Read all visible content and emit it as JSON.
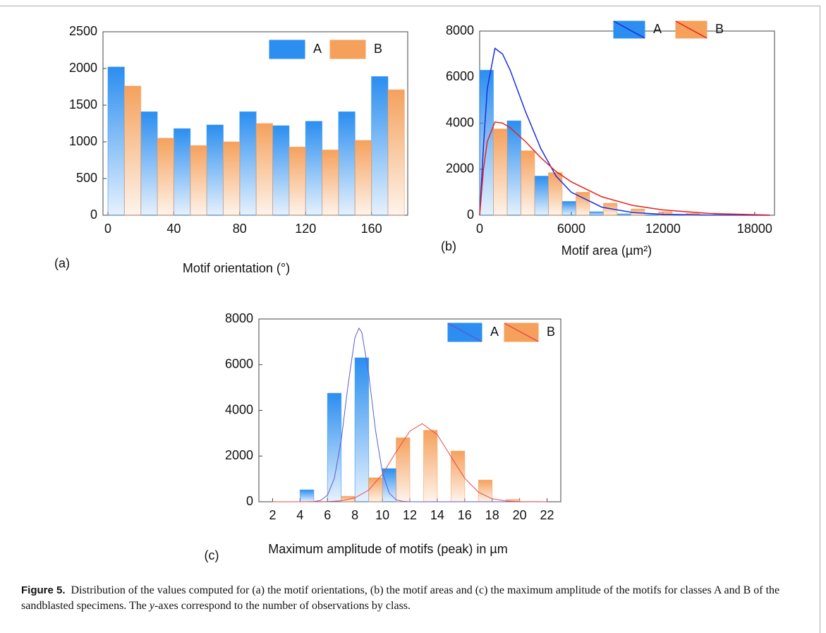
{
  "chart_data": [
    {
      "type": "histogram",
      "panel_label": "(a)",
      "x_label": "Motif orientation (°)",
      "bins": [
        0,
        20,
        40,
        60,
        80,
        100,
        120,
        140,
        160,
        180
      ],
      "series": [
        {
          "name": "A",
          "color": "#2b8ef0",
          "values": [
            2020,
            1410,
            1180,
            1230,
            1410,
            1220,
            1280,
            1410,
            1890
          ]
        },
        {
          "name": "B",
          "color": "#f5a15c",
          "values": [
            1760,
            1050,
            950,
            1000,
            1250,
            930,
            890,
            1020,
            1710
          ]
        }
      ],
      "xlim": [
        -3,
        182
      ],
      "xticks": [
        0,
        40,
        80,
        120,
        160
      ],
      "ylim": [
        0,
        2500
      ],
      "yticks": [
        0,
        500,
        1000,
        1500,
        2000,
        2500
      ],
      "legend": "upper right"
    },
    {
      "type": "histogram",
      "panel_label": "(b)",
      "x_label": "Motif area (µm²)",
      "bins": [
        0,
        1800,
        3600,
        5400,
        7200,
        9000,
        10800,
        12600,
        14400,
        16200,
        18000
      ],
      "series": [
        {
          "name": "A",
          "color": "#2b8ef0",
          "values": [
            6300,
            4100,
            1700,
            600,
            150,
            60,
            20,
            10,
            0,
            0
          ],
          "curve": {
            "color": "#1a2ee0",
            "x": [
              0,
              250,
              500,
              1000,
              1500,
              2000,
              3000,
              4000,
              5000,
              6000,
              8000,
              10000,
              12000,
              15000,
              19000
            ],
            "values": [
              0,
              3000,
              5500,
              7250,
              7000,
              6300,
              4500,
              2900,
              1700,
              1000,
              350,
              120,
              40,
              10,
              0
            ]
          }
        },
        {
          "name": "B",
          "color": "#f5a15c",
          "values": [
            3750,
            2800,
            1850,
            1000,
            520,
            270,
            150,
            80,
            40,
            20
          ],
          "curve": {
            "color": "#e8201a",
            "x": [
              0,
              250,
              500,
              1000,
              1500,
              2000,
              3000,
              4000,
              5000,
              6000,
              8000,
              10000,
              12000,
              15000,
              19000
            ],
            "values": [
              0,
              2000,
              3200,
              4050,
              4000,
              3800,
              3200,
              2500,
              1900,
              1450,
              800,
              430,
              230,
              80,
              10
            ]
          }
        }
      ],
      "xlim": [
        0,
        19300
      ],
      "xticks": [
        0,
        6000,
        12000,
        18000
      ],
      "ylim": [
        0,
        8000
      ],
      "yticks": [
        0,
        2000,
        4000,
        6000,
        8000
      ],
      "legend": "upper right"
    },
    {
      "type": "histogram",
      "panel_label": "(c)",
      "x_label": "Maximum amplitude of motifs (peak) in µm",
      "bins": [
        2,
        4,
        6,
        8,
        10,
        12,
        14,
        16,
        18,
        20,
        22
      ],
      "series": [
        {
          "name": "A",
          "color": "#2b8ef0",
          "values": [
            0,
            520,
            4750,
            6300,
            1450,
            0,
            0,
            0,
            0,
            0
          ],
          "curve": {
            "color": "#5b5bd6",
            "x": [
              2,
              4.5,
              5,
              5.5,
              6,
              6.5,
              7,
              7.5,
              8,
              8.3,
              8.5,
              9,
              9.5,
              10,
              10.5,
              11,
              11.5,
              12,
              22
            ],
            "values": [
              0,
              0,
              9,
              60,
              290,
              1030,
              2680,
              5120,
              7190,
              7600,
              7410,
              5620,
              3120,
              1280,
              380,
              85,
              14,
              0,
              0
            ]
          }
        },
        {
          "name": "B",
          "color": "#f5a15c",
          "values": [
            0,
            0,
            240,
            1050,
            2800,
            3130,
            2220,
            950,
            100,
            0
          ],
          "curve": {
            "color": "#e84a4a",
            "x": [
              2,
              4,
              5,
              6,
              7,
              8,
              9,
              10,
              11,
              12,
              12.9,
              14,
              15,
              16,
              17,
              18,
              19,
              20,
              22
            ],
            "values": [
              0,
              0,
              1,
              9,
              44,
              170,
              510,
              1200,
              2180,
              3090,
              3420,
              2940,
              1970,
              1030,
              420,
              130,
              33,
              6,
              0
            ]
          }
        }
      ],
      "xlim": [
        1,
        23
      ],
      "xticks": [
        2,
        4,
        6,
        8,
        10,
        12,
        14,
        16,
        18,
        20,
        22
      ],
      "ylim": [
        0,
        8000
      ],
      "yticks": [
        0,
        2000,
        4000,
        6000,
        8000
      ],
      "legend": "upper right"
    }
  ],
  "caption": {
    "label": "Figure 5.",
    "parts": [
      "Distribution of the values computed for (a) the motif orientations, (b) the motif areas and (c) the maximum amplitude of the motifs for classes A and B of the sandblasted specimens. The ",
      "y",
      "-axes correspond to the number of observations by class."
    ]
  }
}
